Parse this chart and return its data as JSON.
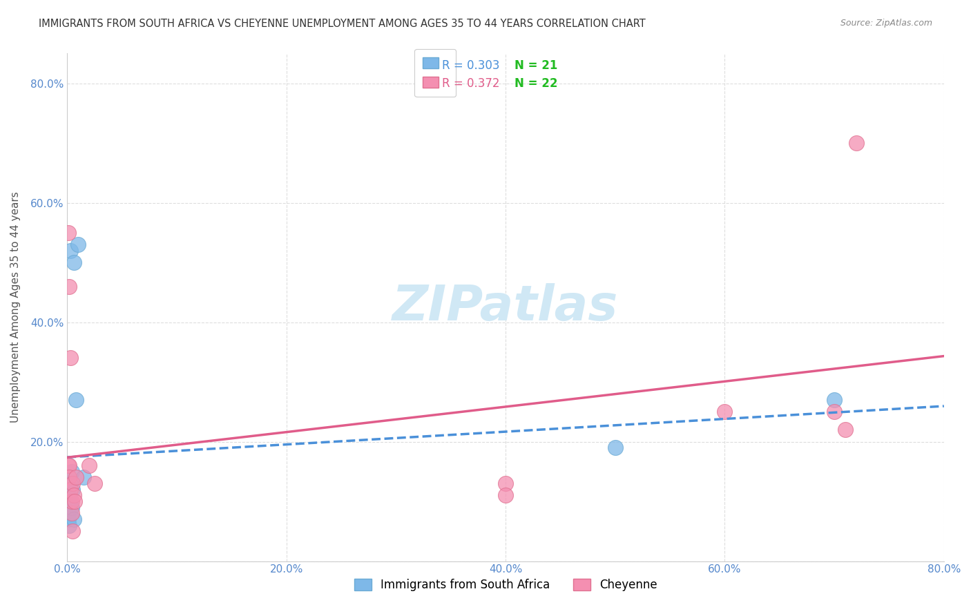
{
  "title": "IMMIGRANTS FROM SOUTH AFRICA VS CHEYENNE UNEMPLOYMENT AMONG AGES 35 TO 44 YEARS CORRELATION CHART",
  "source": "Source: ZipAtlas.com",
  "ylabel_label": "Unemployment Among Ages 35 to 44 years",
  "xlim": [
    0.0,
    0.8
  ],
  "ylim": [
    0.0,
    0.85
  ],
  "xticks": [
    0.0,
    0.2,
    0.4,
    0.6,
    0.8
  ],
  "xticklabels": [
    "0.0%",
    "20.0%",
    "40.0%",
    "60.0%",
    "80.0%"
  ],
  "yticks": [
    0.0,
    0.2,
    0.4,
    0.6,
    0.8
  ],
  "yticklabels": [
    "",
    "20.0%",
    "40.0%",
    "60.0%",
    "80.0%"
  ],
  "blue_color": "#7EB8E8",
  "pink_color": "#F48FB1",
  "blue_line_color": "#4A90D9",
  "pink_line_color": "#E05C8A",
  "legend_blue_R": "R = 0.303",
  "legend_blue_N": "N = 21",
  "legend_pink_R": "R = 0.372",
  "legend_pink_N": "N = 22",
  "blue_points": [
    [
      0.003,
      0.52
    ],
    [
      0.006,
      0.5
    ],
    [
      0.01,
      0.53
    ],
    [
      0.001,
      0.1
    ],
    [
      0.001,
      0.12
    ],
    [
      0.001,
      0.08
    ],
    [
      0.001,
      0.07
    ],
    [
      0.002,
      0.09
    ],
    [
      0.002,
      0.11
    ],
    [
      0.002,
      0.06
    ],
    [
      0.003,
      0.13
    ],
    [
      0.003,
      0.08
    ],
    [
      0.003,
      0.1
    ],
    [
      0.004,
      0.09
    ],
    [
      0.004,
      0.15
    ],
    [
      0.005,
      0.12
    ],
    [
      0.006,
      0.07
    ],
    [
      0.008,
      0.27
    ],
    [
      0.015,
      0.14
    ],
    [
      0.5,
      0.19
    ],
    [
      0.7,
      0.27
    ]
  ],
  "pink_points": [
    [
      0.001,
      0.55
    ],
    [
      0.002,
      0.46
    ],
    [
      0.003,
      0.34
    ],
    [
      0.001,
      0.16
    ],
    [
      0.002,
      0.16
    ],
    [
      0.002,
      0.14
    ],
    [
      0.003,
      0.12
    ],
    [
      0.004,
      0.08
    ],
    [
      0.004,
      0.1
    ],
    [
      0.005,
      0.05
    ],
    [
      0.005,
      0.13
    ],
    [
      0.006,
      0.11
    ],
    [
      0.007,
      0.1
    ],
    [
      0.008,
      0.14
    ],
    [
      0.02,
      0.16
    ],
    [
      0.025,
      0.13
    ],
    [
      0.4,
      0.13
    ],
    [
      0.4,
      0.11
    ],
    [
      0.6,
      0.25
    ],
    [
      0.7,
      0.25
    ],
    [
      0.71,
      0.22
    ],
    [
      0.72,
      0.7
    ]
  ],
  "watermark_text": "ZIPatlas",
  "watermark_color": "#D0E8F5",
  "watermark_fontsize": 52,
  "background_color": "#FFFFFF",
  "grid_color": "#DDDDDD"
}
